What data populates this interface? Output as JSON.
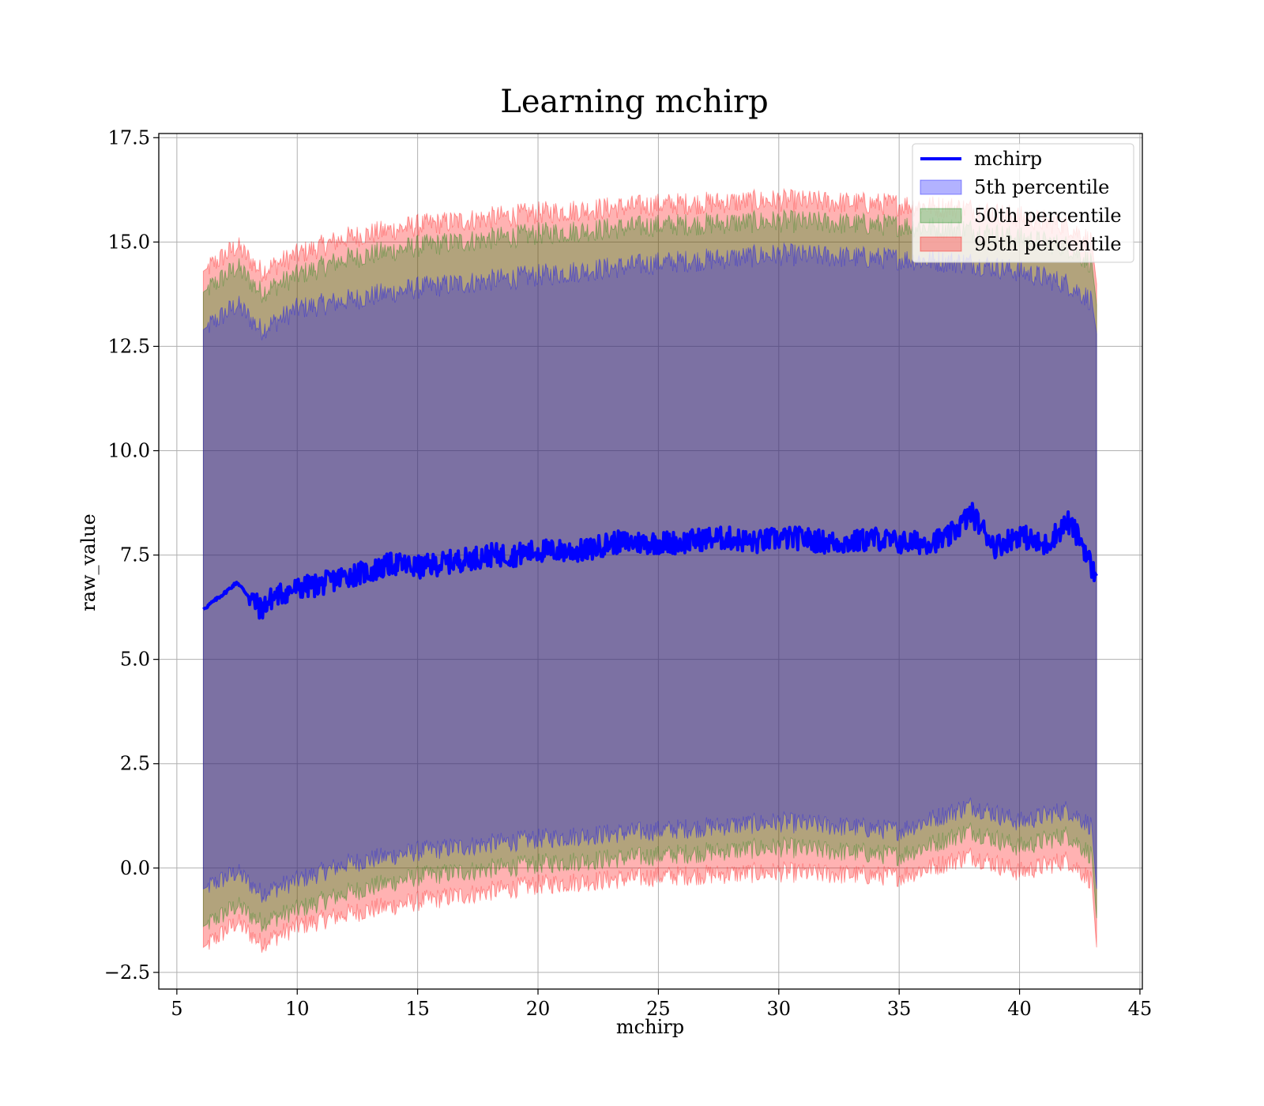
{
  "chart_data": {
    "type": "area",
    "title": "Learning mchirp",
    "xlabel": "mchirp",
    "ylabel": "raw_value",
    "xlim": [
      4.25,
      45.1
    ],
    "ylim": [
      -2.9,
      17.6
    ],
    "x_ticks": [
      5,
      10,
      15,
      20,
      25,
      30,
      35,
      40,
      45
    ],
    "x_tick_labels": [
      "5",
      "10",
      "15",
      "20",
      "25",
      "30",
      "35",
      "40",
      "45"
    ],
    "y_ticks": [
      -2.5,
      0.0,
      2.5,
      5.0,
      7.5,
      10.0,
      12.5,
      15.0,
      17.5
    ],
    "y_tick_labels": [
      "−2.5",
      "0.0",
      "2.5",
      "5.0",
      "7.5",
      "10.0",
      "12.5",
      "15.0",
      "17.5"
    ],
    "grid": true,
    "legend_position": "top-right",
    "series": [
      {
        "name": "mchirp",
        "kind": "line",
        "color": "#0000ff",
        "x": [
          6.1,
          7.0,
          7.5,
          8.0,
          8.5,
          9.0,
          10.0,
          11.0,
          12.0,
          13.0,
          14.0,
          15.0,
          16.0,
          17.0,
          18.0,
          19.0,
          20.0,
          21.0,
          22.0,
          23.0,
          24.0,
          25.0,
          26.0,
          27.0,
          28.0,
          29.0,
          30.0,
          31.0,
          32.0,
          33.0,
          34.0,
          35.0,
          36.0,
          37.0,
          38.0,
          39.0,
          40.0,
          41.0,
          42.0,
          42.6,
          43.0,
          43.2
        ],
        "y": [
          6.2,
          6.6,
          6.85,
          6.5,
          6.2,
          6.5,
          6.7,
          6.8,
          7.0,
          7.1,
          7.3,
          7.2,
          7.3,
          7.4,
          7.5,
          7.5,
          7.6,
          7.6,
          7.6,
          7.8,
          7.8,
          7.8,
          7.8,
          7.9,
          7.9,
          7.8,
          7.9,
          7.9,
          7.8,
          7.8,
          7.9,
          7.8,
          7.8,
          7.9,
          8.5,
          7.7,
          8.0,
          7.7,
          8.3,
          7.8,
          7.2,
          7.0
        ]
      },
      {
        "name": "5th percentile",
        "kind": "band",
        "color": "#0000ff",
        "x": [
          6.1,
          7.5,
          8.5,
          10.0,
          12.0,
          15.0,
          20.0,
          25.0,
          30.0,
          35.0,
          38.0,
          40.0,
          42.0,
          43.0,
          43.2
        ],
        "upper": [
          12.9,
          13.5,
          12.9,
          13.4,
          13.6,
          13.9,
          14.2,
          14.5,
          14.7,
          14.6,
          14.5,
          14.3,
          14.0,
          13.6,
          12.8
        ],
        "lower": [
          -0.5,
          -0.1,
          -0.6,
          -0.3,
          0.1,
          0.4,
          0.7,
          0.9,
          1.1,
          0.9,
          1.5,
          1.1,
          1.4,
          1.0,
          -0.5
        ]
      },
      {
        "name": "50th percentile",
        "kind": "band",
        "color": "#008000",
        "x": [
          6.1,
          7.5,
          8.5,
          10.0,
          12.0,
          15.0,
          20.0,
          25.0,
          30.0,
          35.0,
          38.0,
          40.0,
          42.0,
          43.0,
          43.2
        ],
        "upper": [
          13.8,
          14.4,
          13.8,
          14.2,
          14.6,
          14.9,
          15.2,
          15.4,
          15.5,
          15.4,
          15.3,
          15.1,
          14.9,
          14.5,
          13.5
        ],
        "lower": [
          -1.4,
          -0.9,
          -1.3,
          -1.0,
          -0.6,
          -0.2,
          0.1,
          0.3,
          0.5,
          0.3,
          0.9,
          0.5,
          0.8,
          0.3,
          -1.2
        ]
      },
      {
        "name": "95th percentile",
        "kind": "band",
        "color": "#ff0000",
        "x": [
          6.1,
          7.5,
          8.5,
          10.0,
          12.0,
          15.0,
          20.0,
          25.0,
          30.0,
          35.0,
          38.0,
          40.0,
          42.0,
          43.0,
          43.2
        ],
        "upper": [
          14.3,
          14.9,
          14.3,
          14.7,
          15.1,
          15.4,
          15.7,
          15.9,
          16.0,
          15.9,
          15.8,
          15.6,
          15.4,
          15.0,
          14.0
        ],
        "lower": [
          -1.9,
          -1.3,
          -1.8,
          -1.4,
          -1.1,
          -0.8,
          -0.4,
          -0.2,
          -0.1,
          -0.2,
          0.3,
          -0.1,
          0.2,
          -0.3,
          -1.9
        ]
      }
    ]
  }
}
